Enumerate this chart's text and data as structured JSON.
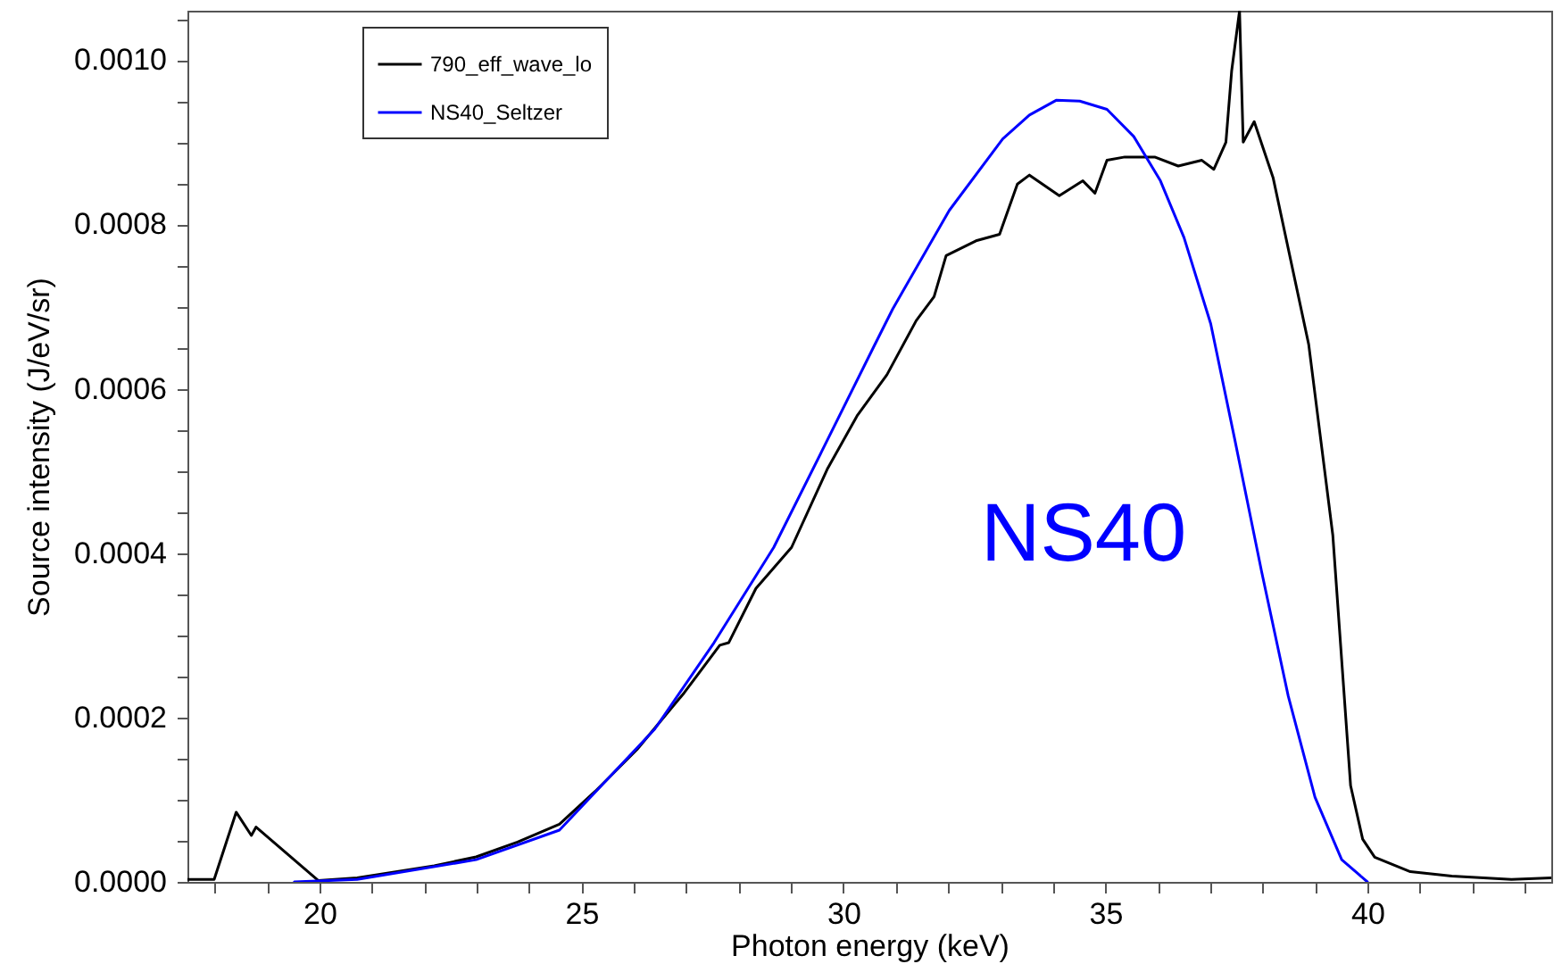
{
  "chart_data": {
    "type": "line",
    "xlabel": "Photon energy (keV)",
    "ylabel": "Source intensity (J/eV/sr)",
    "annotations": [
      "NS40"
    ],
    "xlim": [
      17.48,
      43.51
    ],
    "ylim": [
      0,
      0.00106
    ],
    "xticks": [
      {
        "value": 18,
        "label": null
      },
      {
        "value": 19,
        "label": null
      },
      20,
      {
        "value": 21,
        "label": null
      },
      {
        "value": 22,
        "label": null
      },
      {
        "value": 23,
        "label": null
      },
      {
        "value": 24,
        "label": null
      },
      25,
      {
        "value": 26,
        "label": null
      },
      {
        "value": 27,
        "label": null
      },
      {
        "value": 28,
        "label": null
      },
      {
        "value": 29,
        "label": null
      },
      30,
      {
        "value": 31,
        "label": null
      },
      {
        "value": 32,
        "label": null
      },
      {
        "value": 33,
        "label": null
      },
      {
        "value": 34,
        "label": null
      },
      35,
      {
        "value": 36,
        "label": null
      },
      {
        "value": 37,
        "label": null
      },
      {
        "value": 38,
        "label": null
      },
      {
        "value": 39,
        "label": null
      },
      40,
      {
        "value": 41,
        "label": null
      },
      {
        "value": 42,
        "label": null
      },
      {
        "value": 43,
        "label": null
      }
    ],
    "yticks": [
      {
        "value": 0,
        "label": "0.0000"
      },
      {
        "value": 5e-05,
        "label": null
      },
      {
        "value": 0.0001,
        "label": null
      },
      {
        "value": 0.00015,
        "label": null
      },
      {
        "value": 0.0002,
        "label": "0.0002"
      },
      {
        "value": 0.00025,
        "label": null
      },
      {
        "value": 0.0003,
        "label": null
      },
      {
        "value": 0.00035,
        "label": null
      },
      {
        "value": 0.0004,
        "label": "0.0004"
      },
      {
        "value": 0.00045,
        "label": null
      },
      {
        "value": 0.0005,
        "label": null
      },
      {
        "value": 0.00055,
        "label": null
      },
      {
        "value": 0.0006,
        "label": "0.0006"
      },
      {
        "value": 0.00065,
        "label": null
      },
      {
        "value": 0.0007,
        "label": null
      },
      {
        "value": 0.00075,
        "label": null
      },
      {
        "value": 0.0008,
        "label": "0.0008"
      },
      {
        "value": 0.00085,
        "label": null
      },
      {
        "value": 0.0009,
        "label": null
      },
      {
        "value": 0.00095,
        "label": null
      },
      {
        "value": 0.001,
        "label": "0.0010"
      },
      {
        "value": 0.00105,
        "label": null
      }
    ],
    "grid": false,
    "legend": "top left",
    "marker": "none",
    "line_style": "solid",
    "series": [
      {
        "name": "790_eff_wave_lo",
        "color": "#000000",
        "x": [
          17.48,
          17.99,
          18.41,
          18.7,
          18.79,
          19.98,
          20.72,
          22.19,
          22.99,
          23.78,
          24.58,
          25.26,
          26.06,
          26.96,
          27.64,
          27.81,
          28.33,
          29.01,
          29.69,
          30.26,
          30.83,
          31.39,
          31.73,
          31.96,
          32.53,
          32.98,
          33.32,
          33.55,
          34.12,
          34.57,
          34.8,
          35.03,
          35.37,
          35.94,
          36.39,
          36.84,
          37.07,
          37.3,
          37.41,
          37.56,
          37.63,
          37.84,
          38.2,
          38.88,
          39.34,
          39.68,
          39.91,
          40.14,
          40.82,
          41.61,
          42.75,
          43.51
        ],
        "values": [
          3e-06,
          3e-06,
          8.48e-05,
          5.65e-05,
          6.67e-05,
          1.5e-06,
          5e-06,
          1.96e-05,
          3.04e-05,
          4.85e-05,
          7.02e-05,
          0.00011,
          0.000161,
          0.00023,
          0.000288,
          0.000291,
          0.000357,
          0.000407,
          0.000502,
          0.000567,
          0.000617,
          0.000683,
          0.000712,
          0.000762,
          0.00078,
          0.000788,
          0.000849,
          0.00086,
          0.000835,
          0.000853,
          0.000838,
          0.000878,
          0.000882,
          0.000882,
          0.000871,
          0.000878,
          0.000867,
          0.0009,
          0.000987,
          0.00106,
          0.0009,
          0.000925,
          0.000857,
          0.000654,
          0.000422,
          0.000117,
          5.2e-05,
          3e-05,
          1.24e-05,
          7e-06,
          3e-06,
          5e-06
        ]
      },
      {
        "name": "NS40_Seltzer",
        "color": "#0000ff",
        "x": [
          19.52,
          20.72,
          22.99,
          24.58,
          26.4,
          27.53,
          28.67,
          29.58,
          30.57,
          30.94,
          32.02,
          33.04,
          33.55,
          34.06,
          34.51,
          35.03,
          35.54,
          36.05,
          36.5,
          37.01,
          37.47,
          37.98,
          38.49,
          39.0,
          39.51,
          40.0
        ],
        "values": [
          0,
          3e-06,
          2.7e-05,
          6.3e-05,
          0.000186,
          0.000291,
          0.000407,
          0.000523,
          0.00065,
          0.000697,
          0.000817,
          0.000904,
          0.000933,
          0.000951,
          0.00095,
          0.00094,
          0.000907,
          0.000853,
          0.000784,
          0.000679,
          0.000538,
          0.000378,
          0.000226,
          0.000103,
          2.7e-05,
          0
        ]
      }
    ]
  }
}
